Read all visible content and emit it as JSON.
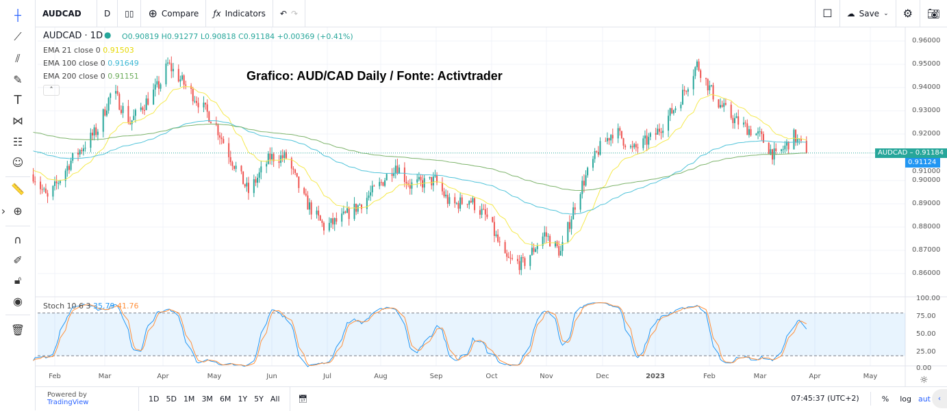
{
  "toolbar": {
    "symbol": "AUDCAD",
    "interval": "D",
    "compare": "Compare",
    "indicators": "Indicators",
    "save": "Save"
  },
  "legend": {
    "title": "AUDCAD · 1D",
    "ohlc": "O0.90819 H0.91277 L0.90818 C0.91184 +0.00369 (+0.41%)",
    "ema21_label": "EMA 21 close 0",
    "ema21_value": "0.91503",
    "ema100_label": "EMA 100 close 0",
    "ema100_value": "0.91649",
    "ema200_label": "EMA 200 close 0",
    "ema200_value": "0.91151",
    "stoch_label": "Stoch 10 6 3",
    "stoch_k": "35.79",
    "stoch_d": "41.76"
  },
  "overlay_title": "Grafico: AUD/CAD Daily / Fonte: Activtrader",
  "price_tag": {
    "label": "AUDCAD",
    "last": "0.91184",
    "ema": "0.91124"
  },
  "bottom": {
    "powered": "Powered by ",
    "brand": "TradingView",
    "ranges": [
      "1D",
      "5D",
      "1M",
      "3M",
      "6M",
      "1Y",
      "5Y",
      "All"
    ],
    "clock": "07:45:37 (UTC+2)",
    "pct": "%",
    "log": "log",
    "auto": "aut"
  },
  "colors": {
    "up": "#26a69a",
    "down": "#ef5350",
    "ema21": "#f5e94b",
    "ema100": "#4fc3d9",
    "ema200": "#7cb36a",
    "stoch_k": "#2196f3",
    "stoch_d": "#ff8f3a"
  },
  "chart_data": {
    "type": "candlestick",
    "price_axis_ticks": [
      "0.96000",
      "0.95000",
      "0.94000",
      "0.93000",
      "0.92000",
      "0.91000",
      "0.90000",
      "0.89000",
      "0.88000",
      "0.87000",
      "0.86000"
    ],
    "stoch_axis_ticks": [
      "100.00",
      "75.00",
      "50.00",
      "25.00",
      "0.00"
    ],
    "time_axis_ticks": [
      "Feb",
      "Mar",
      "Apr",
      "May",
      "Jun",
      "Jul",
      "Aug",
      "Sep",
      "Oct",
      "Nov",
      "Dec",
      "2023",
      "Feb",
      "Mar",
      "Apr",
      "May"
    ],
    "ylim": [
      0.855,
      0.965
    ],
    "approx_close_path": [
      [
        "2022-01-20",
        0.9026
      ],
      [
        "2022-01-28",
        0.892
      ],
      [
        "2022-02-10",
        0.9085
      ],
      [
        "2022-02-25",
        0.922
      ],
      [
        "2022-03-05",
        0.939
      ],
      [
        "2022-03-15",
        0.925
      ],
      [
        "2022-04-01",
        0.942
      ],
      [
        "2022-04-05",
        0.95
      ],
      [
        "2022-04-20",
        0.936
      ],
      [
        "2022-05-01",
        0.925
      ],
      [
        "2022-05-10",
        0.91
      ],
      [
        "2022-05-20",
        0.895
      ],
      [
        "2022-06-01",
        0.91
      ],
      [
        "2022-06-10",
        0.91
      ],
      [
        "2022-06-20",
        0.892
      ],
      [
        "2022-07-01",
        0.88
      ],
      [
        "2022-07-10",
        0.883
      ],
      [
        "2022-07-20",
        0.889
      ],
      [
        "2022-08-01",
        0.898
      ],
      [
        "2022-08-10",
        0.907
      ],
      [
        "2022-08-18",
        0.898
      ],
      [
        "2022-09-01",
        0.9
      ],
      [
        "2022-09-10",
        0.889
      ],
      [
        "2022-09-20",
        0.892
      ],
      [
        "2022-10-01",
        0.883
      ],
      [
        "2022-10-10",
        0.866
      ],
      [
        "2022-10-20",
        0.864
      ],
      [
        "2022-11-01",
        0.877
      ],
      [
        "2022-11-10",
        0.869
      ],
      [
        "2022-11-20",
        0.895
      ],
      [
        "2022-12-01",
        0.913
      ],
      [
        "2022-12-10",
        0.922
      ],
      [
        "2022-12-20",
        0.913
      ],
      [
        "2023-01-01",
        0.919
      ],
      [
        "2023-01-15",
        0.934
      ],
      [
        "2023-01-25",
        0.95
      ],
      [
        "2023-02-05",
        0.934
      ],
      [
        "2023-02-15",
        0.926
      ],
      [
        "2023-03-01",
        0.919
      ],
      [
        "2023-03-10",
        0.91
      ],
      [
        "2023-03-20",
        0.919
      ],
      [
        "2023-03-27",
        0.9118
      ]
    ],
    "last_close": 0.91184,
    "stoch_bands": [
      80,
      20
    ]
  }
}
